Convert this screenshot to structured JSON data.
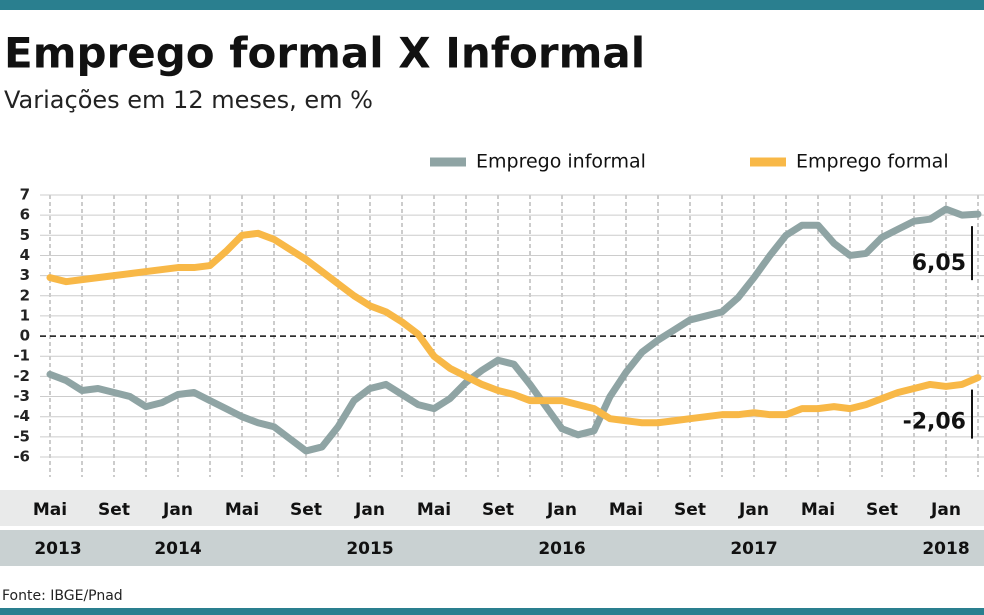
{
  "chart_data": {
    "type": "line",
    "title": "Emprego formal X Informal",
    "subtitle": "Variações em 12 meses, em %",
    "source": "Fonte: IBGE/Pnad",
    "categories": [
      "Mai",
      null,
      null,
      null,
      "Set",
      null,
      null,
      null,
      "Jan",
      null,
      null,
      null,
      "Mai",
      null,
      null,
      null,
      "Set",
      null,
      null,
      null,
      "Jan",
      null,
      null,
      null,
      "Mai",
      null,
      null,
      null,
      "Set",
      null,
      null,
      null,
      "Jan",
      null,
      null,
      null,
      "Mai",
      null,
      null,
      null,
      "Set",
      null,
      null,
      null,
      "Jan",
      null,
      null,
      null,
      "Mai",
      null,
      null,
      null,
      "Set",
      null,
      null,
      null,
      "Jan",
      null,
      null
    ],
    "years": [
      "2013",
      null,
      null,
      null,
      null,
      null,
      null,
      null,
      "2014",
      null,
      null,
      null,
      null,
      null,
      null,
      null,
      null,
      null,
      null,
      null,
      "2015",
      null,
      null,
      null,
      null,
      null,
      null,
      null,
      null,
      null,
      null,
      null,
      "2016",
      null,
      null,
      null,
      null,
      null,
      null,
      null,
      null,
      null,
      null,
      null,
      "2017",
      null,
      null,
      null,
      null,
      null,
      null,
      null,
      null,
      null,
      null,
      null,
      "2018",
      null,
      null
    ],
    "series": [
      {
        "name": "Emprego informal",
        "color": "#8fa4a4",
        "values": [
          -1.9,
          -2.2,
          -2.7,
          -2.6,
          -2.8,
          -3.0,
          -3.5,
          -3.3,
          -2.9,
          -2.8,
          -3.2,
          -3.6,
          -4.0,
          -4.3,
          -4.5,
          -5.1,
          -5.7,
          -5.5,
          -4.5,
          -3.2,
          -2.6,
          -2.4,
          -2.9,
          -3.4,
          -3.6,
          -3.1,
          -2.3,
          -1.7,
          -1.2,
          -1.4,
          -2.4,
          -3.5,
          -4.6,
          -4.9,
          -4.7,
          -3.0,
          -1.8,
          -0.8,
          -0.2,
          0.3,
          0.8,
          1.0,
          1.2,
          1.9,
          2.9,
          4.0,
          5.0,
          5.5,
          5.5,
          4.6,
          4.0,
          4.1,
          4.9,
          5.3,
          5.7,
          5.8,
          6.3,
          6.0,
          6.05
        ],
        "value_labels": [
          null,
          null,
          null,
          null,
          null,
          null,
          null,
          null,
          null,
          null,
          null,
          null,
          null,
          null,
          null,
          null,
          null,
          null,
          null,
          null,
          null,
          null,
          null,
          null,
          null,
          null,
          null,
          null,
          null,
          null,
          null,
          null,
          null,
          null,
          null,
          null,
          null,
          null,
          null,
          null,
          null,
          null,
          null,
          null,
          null,
          null,
          null,
          null,
          null,
          null,
          null,
          null,
          null,
          null,
          null,
          null,
          null,
          null,
          "6,05"
        ]
      },
      {
        "name": "Emprego formal",
        "color": "#f8b847",
        "values": [
          2.9,
          2.7,
          2.8,
          2.9,
          3.0,
          3.1,
          3.2,
          3.3,
          3.4,
          3.4,
          3.5,
          4.2,
          5.0,
          5.1,
          4.8,
          4.3,
          3.8,
          3.2,
          2.6,
          2.0,
          1.5,
          1.2,
          0.7,
          0.1,
          -1.0,
          -1.6,
          -2.0,
          -2.4,
          -2.7,
          -2.9,
          -3.2,
          -3.2,
          -3.2,
          -3.4,
          -3.6,
          -4.1,
          -4.2,
          -4.3,
          -4.3,
          -4.2,
          -4.1,
          -4.0,
          -3.9,
          -3.9,
          -3.8,
          -3.9,
          -3.9,
          -3.6,
          -3.6,
          -3.5,
          -3.6,
          -3.4,
          -3.1,
          -2.8,
          -2.6,
          -2.4,
          -2.5,
          -2.4,
          -2.06
        ],
        "value_labels": [
          null,
          null,
          null,
          null,
          null,
          null,
          null,
          null,
          null,
          null,
          null,
          null,
          null,
          null,
          null,
          null,
          null,
          null,
          null,
          null,
          null,
          null,
          null,
          null,
          null,
          null,
          null,
          null,
          null,
          null,
          null,
          null,
          null,
          null,
          null,
          null,
          null,
          null,
          null,
          null,
          null,
          null,
          null,
          null,
          null,
          null,
          null,
          null,
          null,
          null,
          null,
          null,
          null,
          null,
          null,
          null,
          null,
          null,
          "-2,06"
        ]
      }
    ],
    "ylim": [
      -6,
      7
    ],
    "yticks": [
      -6,
      -5,
      -4,
      -3,
      -2,
      -1,
      0,
      1,
      2,
      3,
      4,
      5,
      6,
      7
    ],
    "grid": true
  }
}
